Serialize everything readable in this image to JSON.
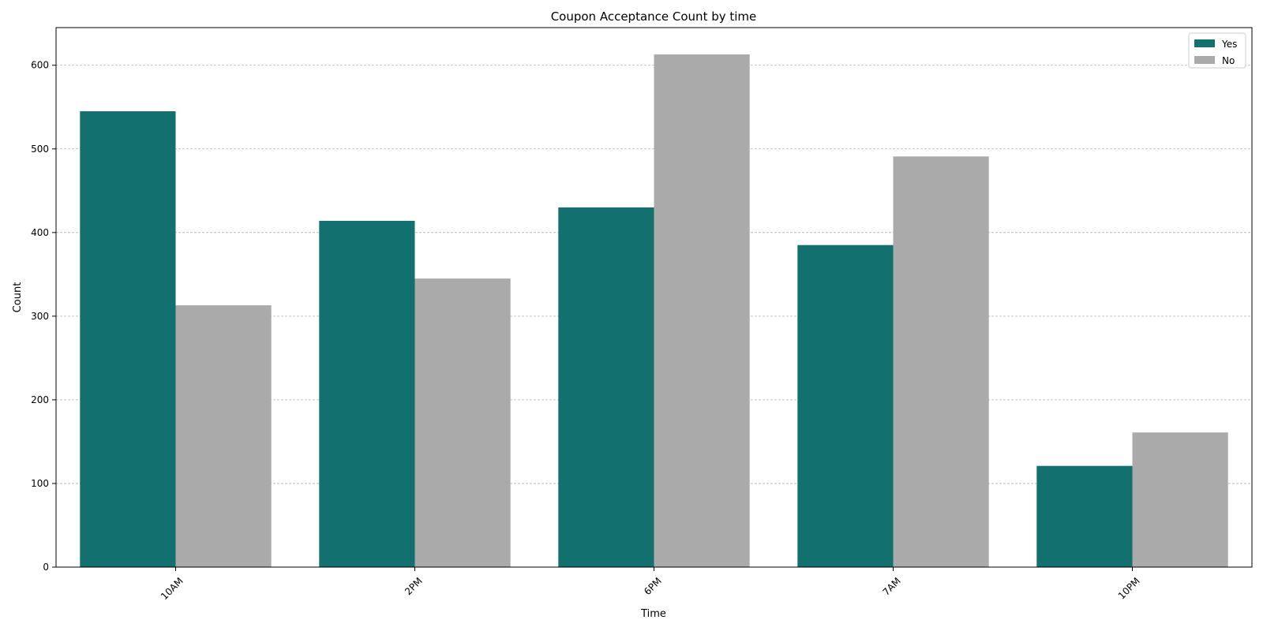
{
  "chart_data": {
    "type": "bar",
    "title": "Coupon Acceptance Count by time",
    "xlabel": "Time",
    "ylabel": "Count",
    "categories": [
      "10AM",
      "2PM",
      "6PM",
      "7AM",
      "10PM"
    ],
    "series": [
      {
        "name": "Yes",
        "values": [
          545,
          414,
          430,
          385,
          121
        ],
        "color": "#12706f"
      },
      {
        "name": "No",
        "values": [
          313,
          345,
          613,
          491,
          161
        ],
        "color": "#aaaaaa"
      }
    ],
    "ylim": [
      0,
      645
    ],
    "yticks": [
      0,
      100,
      200,
      300,
      400,
      500,
      600
    ],
    "grid": "y-dashed",
    "legend_position": "top-right",
    "xtick_rotation": 45
  }
}
